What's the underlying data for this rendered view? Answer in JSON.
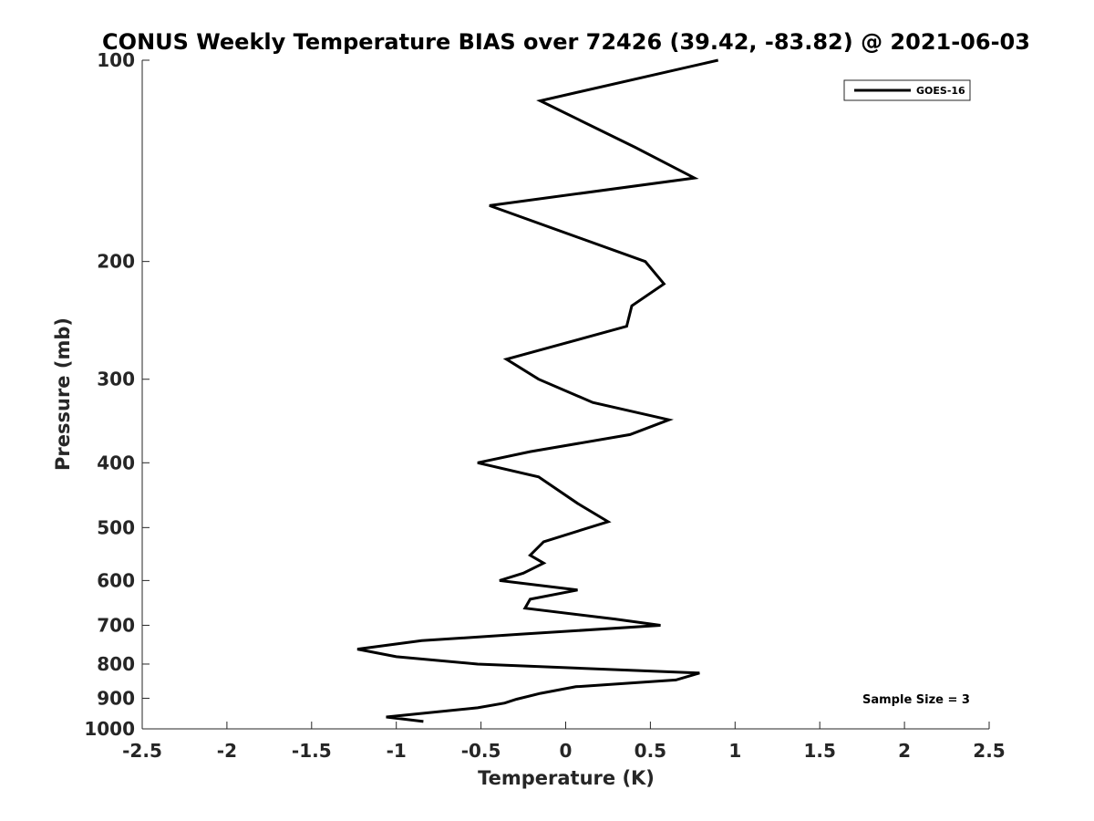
{
  "chart_data": {
    "type": "line",
    "title": "CONUS Weekly Temperature BIAS over 72426 (39.42, -83.82) @ 2021-06-03",
    "xlabel": "Temperature (K)",
    "ylabel": "Pressure (mb)",
    "xlim": [
      -2.5,
      2.5
    ],
    "ylim": [
      100,
      1000
    ],
    "y_scale": "log",
    "y_reversed": true,
    "x_ticks": [
      "-2.5",
      "-2",
      "-1.5",
      "-1",
      "-0.5",
      "0",
      "0.5",
      "1",
      "1.5",
      "2",
      "2.5"
    ],
    "y_ticks": [
      "100",
      "200",
      "300",
      "400",
      "500",
      "600",
      "700",
      "800",
      "900",
      "1000"
    ],
    "grid": false,
    "legend_position": "top-right",
    "annotation": "Sample Size = 3",
    "series": [
      {
        "name": "GOES-16",
        "color": "#000000",
        "points": [
          [
            0.9,
            100
          ],
          [
            -0.15,
            115
          ],
          [
            0.41,
            135
          ],
          [
            0.76,
            150
          ],
          [
            -0.45,
            165
          ],
          [
            0.47,
            200
          ],
          [
            0.58,
            216
          ],
          [
            0.39,
            233
          ],
          [
            0.36,
            250
          ],
          [
            -0.35,
            280
          ],
          [
            -0.16,
            300
          ],
          [
            0.16,
            325
          ],
          [
            0.61,
            345
          ],
          [
            0.38,
            363
          ],
          [
            -0.21,
            385
          ],
          [
            -0.52,
            400
          ],
          [
            -0.16,
            420
          ],
          [
            0.07,
            460
          ],
          [
            0.25,
            490
          ],
          [
            -0.13,
            525
          ],
          [
            -0.21,
            550
          ],
          [
            -0.13,
            565
          ],
          [
            -0.25,
            585
          ],
          [
            -0.39,
            600
          ],
          [
            0.07,
            620
          ],
          [
            -0.21,
            640
          ],
          [
            -0.24,
            660
          ],
          [
            0.29,
            685
          ],
          [
            0.56,
            700
          ],
          [
            -0.27,
            722
          ],
          [
            -0.85,
            738
          ],
          [
            -1.23,
            760
          ],
          [
            -1.0,
            780
          ],
          [
            -0.52,
            800
          ],
          [
            0.79,
            825
          ],
          [
            0.65,
            845
          ],
          [
            0.06,
            865
          ],
          [
            -0.15,
            885
          ],
          [
            -0.29,
            903
          ],
          [
            -0.36,
            915
          ],
          [
            -0.52,
            930
          ],
          [
            -1.06,
            960
          ],
          [
            -0.84,
            975
          ]
        ]
      }
    ]
  }
}
